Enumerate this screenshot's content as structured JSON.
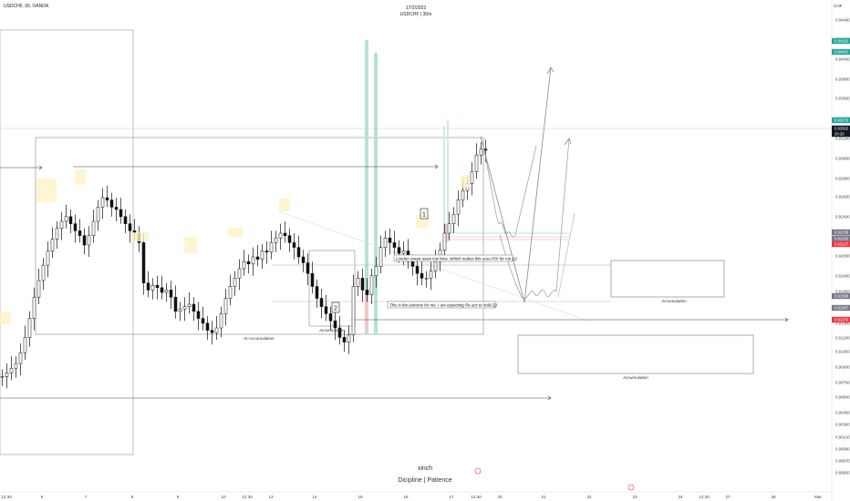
{
  "header": {
    "symbol": "USDCHF, 30, OANDA",
    "date": "17/2/2023",
    "subtitle": "USDCHF | 30m"
  },
  "footer": {
    "author": "xinch",
    "tagline": "Dicipline | Patience"
  },
  "chart_data": {
    "type": "candlestick",
    "currency_label": "CHF",
    "price_axis_ticks": [
      "0.94400",
      "0.94200",
      "0.94000",
      "0.93800",
      "0.93600",
      "0.93400",
      "0.93200",
      "0.93000",
      "0.92800",
      "0.92600",
      "0.92400",
      "0.92200",
      "0.92000",
      "0.91800",
      "0.91650",
      "0.91500",
      "0.91350",
      "0.91200",
      "0.91050",
      "0.90900",
      "0.90750",
      "0.90600",
      "0.90450",
      "0.90360",
      "0.90210",
      "0.90090",
      "0.89970",
      "0.89850"
    ],
    "time_axis_ticks": [
      "12:30",
      "6",
      "7",
      "8",
      "9",
      "10",
      "12:30",
      "13",
      "14",
      "15",
      "16",
      "17",
      "12:30",
      "20",
      "21",
      "22",
      "23",
      "24",
      "12:30",
      "27",
      "28",
      "Mar"
    ],
    "price_badges": [
      {
        "label": "0.94182",
        "color": "#26a69a"
      },
      {
        "label": "0.94081",
        "color": "#26a69a"
      },
      {
        "label": "0.93378",
        "color": "#26a69a"
      },
      {
        "label": "0.93302",
        "color": "#131722"
      },
      {
        "label": "20:23",
        "color": "#131722"
      },
      {
        "label": "0.92238",
        "color": "#787b86"
      },
      {
        "label": "0.92183",
        "color": "#787b86"
      },
      {
        "label": "0.92127",
        "color": "#f23645"
      },
      {
        "label": "0.91598",
        "color": "#787b86"
      },
      {
        "label": "0.91487",
        "color": "#787b86"
      },
      {
        "label": "0.91370",
        "color": "#f23645"
      }
    ],
    "annotations": {
      "london_note": "London swept asian low here. Which makes this area POI for me (1)",
      "extreme_note": "This is the extreme for me. I am expecting Re-acc to hold (2)",
      "label_1": "1",
      "label_2": "2",
      "accumulation": "Accumulation",
      "re_accumulation": "re-Accumulation"
    },
    "close_series": [
      0.9139,
      0.9142,
      0.9146,
      0.915,
      0.9159,
      0.9172,
      0.9188,
      0.9206,
      0.922,
      0.9233,
      0.9245,
      0.9255,
      0.9264,
      0.927,
      0.9274,
      0.9268,
      0.9262,
      0.9258,
      0.925,
      0.9258,
      0.927,
      0.9282,
      0.929,
      0.9288,
      0.9282,
      0.928,
      0.9274,
      0.9268,
      0.9262,
      0.926,
      0.9252,
      0.9218,
      0.9212,
      0.9216,
      0.9214,
      0.921,
      0.9212,
      0.9206,
      0.9194,
      0.9196,
      0.9198,
      0.92,
      0.9194,
      0.9188,
      0.9184,
      0.9178,
      0.9176,
      0.918,
      0.9192,
      0.9205,
      0.9215,
      0.9222,
      0.923,
      0.9236,
      0.9234,
      0.924,
      0.9238,
      0.9245,
      0.9244,
      0.9252,
      0.9256,
      0.926,
      0.9258,
      0.9252,
      0.9248,
      0.924,
      0.9235,
      0.9226,
      0.9215,
      0.9205,
      0.9198,
      0.9192,
      0.9186,
      0.918,
      0.9172,
      0.9168,
      0.9174,
      0.9215,
      0.9222,
      0.9212,
      0.9208,
      0.9224,
      0.9232,
      0.9248,
      0.9256,
      0.9252,
      0.9248,
      0.9243,
      0.9245,
      0.9236,
      0.9232,
      0.9226,
      0.9222,
      0.9222,
      0.9228,
      0.9236,
      0.9246,
      0.926,
      0.9268,
      0.9276,
      0.9288,
      0.9296,
      0.9302,
      0.9312,
      0.9326,
      0.9331,
      0.933
    ]
  }
}
